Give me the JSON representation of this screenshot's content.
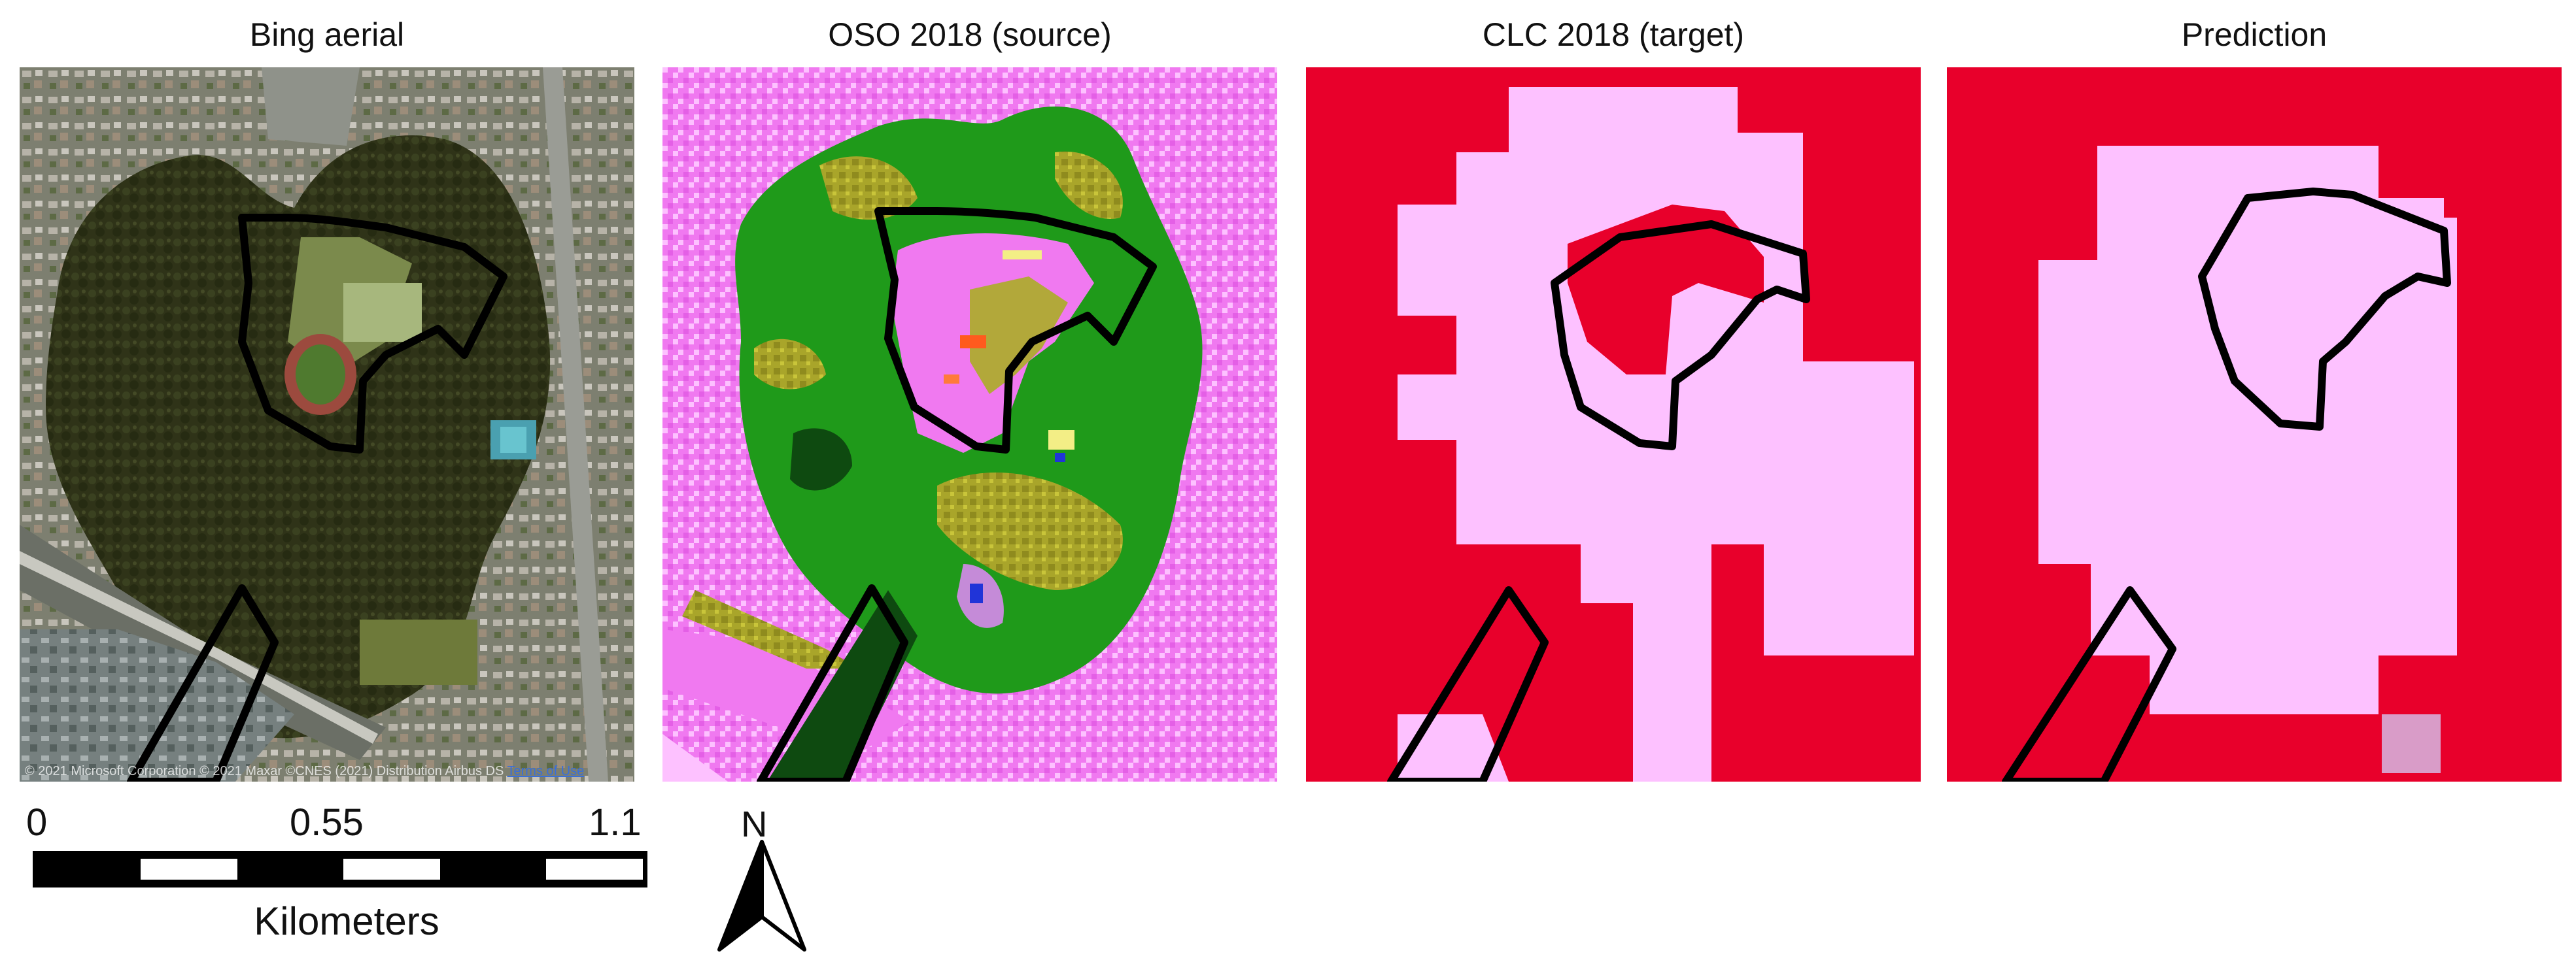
{
  "panels": [
    {
      "id": "bing",
      "title": "Bing aerial"
    },
    {
      "id": "oso",
      "title": "OSO 2018 (source)"
    },
    {
      "id": "clc",
      "title": "CLC 2018 (target)"
    },
    {
      "id": "pred",
      "title": "Prediction"
    }
  ],
  "attribution": {
    "text": "© 2021 Microsoft Corporation © 2021 Maxar ©CNES (2021) Distribution Airbus DS",
    "link": "Terms of Use"
  },
  "scale": {
    "ticks": [
      "0",
      "0.55",
      "1.1"
    ],
    "unit": "Kilometers"
  },
  "north_arrow": {
    "label": "N"
  },
  "colors": {
    "urban_red": "#e8002b",
    "urban_pink": "#fdc1ff",
    "oso_pink": "#f079f0",
    "forest_green": "#1f9a1a",
    "olive": "#a9a52a",
    "dark_forest": "#0e4a10",
    "aerial_forest": "#2f3318",
    "outline": "#000000"
  }
}
